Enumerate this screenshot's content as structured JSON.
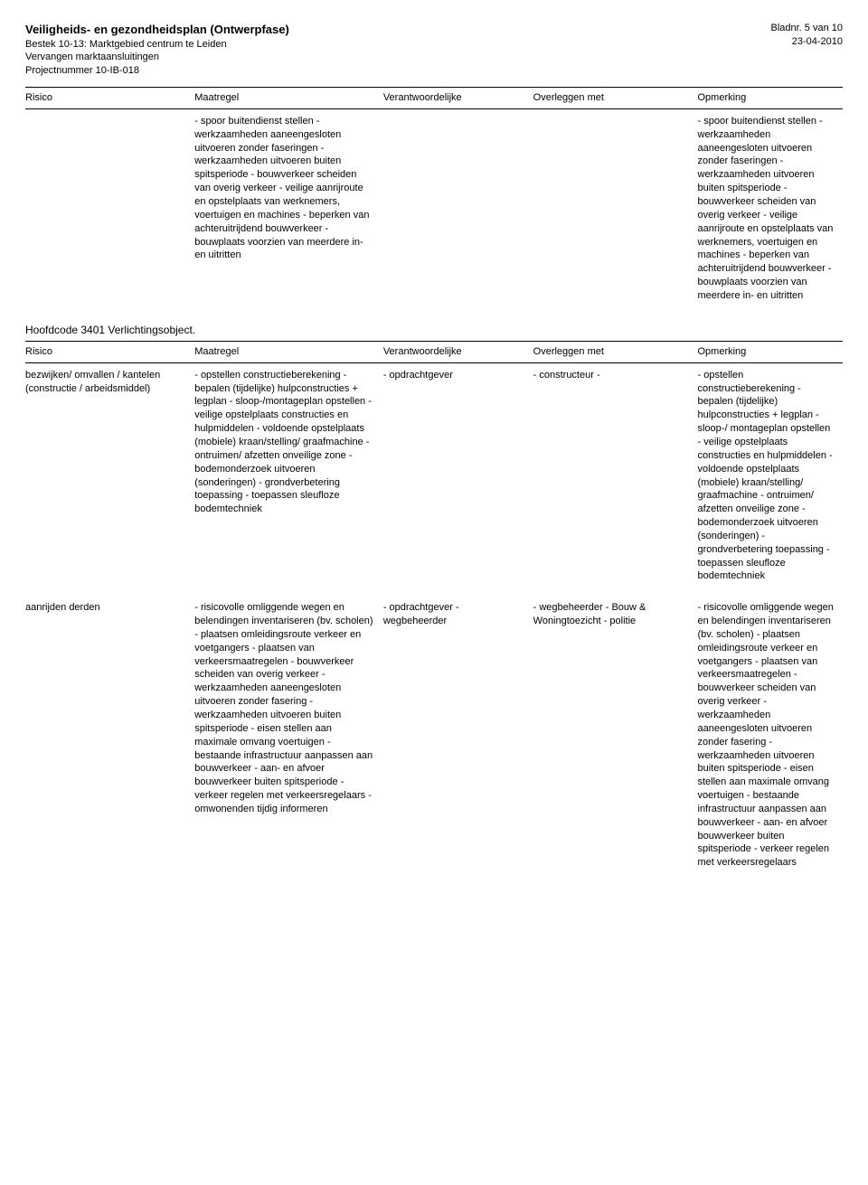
{
  "header": {
    "title": "Veiligheids- en gezondheidsplan (Ontwerpfase)",
    "line2": "Bestek 10-13: Marktgebied centrum te Leiden",
    "line3": "Vervangen marktaansluitingen",
    "line4": "Projectnummer 10-IB-018",
    "page": "Bladnr. 5 van 10",
    "date": "23-04-2010"
  },
  "columns": {
    "c1": "Risico",
    "c2": "Maatregel",
    "c3": "Verantwoordelijke",
    "c4": "Overleggen met",
    "c5": "Opmerking"
  },
  "section2_title": "Hoofdcode 3401 Verlichtingsobject.",
  "row1": {
    "c1": "",
    "c2": "- spoor buitendienst stellen\n- werkzaamheden aaneengesloten uitvoeren zonder faseringen\n- werkzaamheden uitvoeren buiten spitsperiode\n- bouwverkeer scheiden van overig verkeer\n- veilige aanrijroute en opstelplaats van werknemers, voertuigen en machines\n- beperken van achteruitrijdend bouwverkeer\n- bouwplaats voorzien van meerdere in- en uitritten",
    "c3": "",
    "c4": "",
    "c5": "- spoor buitendienst stellen\n- werkzaamheden aaneengesloten uitvoeren zonder faseringen\n- werkzaamheden uitvoeren buiten spitsperiode\n- bouwverkeer scheiden van overig verkeer\n- veilige aanrijroute en opstelplaats van werknemers, voertuigen en machines\n- beperken van achteruitrijdend bouwverkeer\n- bouwplaats voorzien van meerdere in- en uitritten"
  },
  "row2": {
    "c1": "bezwijken/ omvallen / kantelen (constructie / arbeidsmiddel)",
    "c2": "- opstellen constructieberekening\n- bepalen (tijdelijke) hulpconstructies + legplan\n- sloop-/montageplan opstellen\n- veilige opstelplaats constructies en hulpmiddelen\n- voldoende opstelplaats (mobiele) kraan/stelling/ graafmachine\n- ontruimen/ afzetten onveilige zone\n- bodemonderzoek uitvoeren (sonderingen)\n- grondverbetering toepassing\n- toepassen sleufloze bodemtechniek",
    "c3": "- opdrachtgever",
    "c4": "- constructeur\n-",
    "c5": "- opstellen constructieberekening\n- bepalen (tijdelijke) hulpconstructies + legplan\n- sloop-/ montageplan opstellen\n- veilige opstelplaats constructies en hulpmiddelen\n- voldoende opstelplaats (mobiele) kraan/stelling/ graafmachine\n- ontruimen/ afzetten onveilige zone\n- bodemonderzoek uitvoeren (sonderingen)\n- grondverbetering toepassing\n- toepassen sleufloze bodemtechniek"
  },
  "row3": {
    "c1": "aanrijden derden",
    "c2": "- risicovolle omliggende wegen en belendingen inventariseren (bv. scholen)\n- plaatsen omleidingsroute verkeer en voetgangers\n- plaatsen van verkeersmaatregelen\n- bouwverkeer scheiden van overig verkeer\n- werkzaamheden aaneengesloten uitvoeren zonder fasering\n- werkzaamheden uitvoeren buiten spitsperiode\n- eisen stellen aan maximale omvang voertuigen\n- bestaande infrastructuur aanpassen aan bouwverkeer\n- aan- en afvoer bouwverkeer buiten spitsperiode\n- verkeer regelen met verkeersregelaars\n- omwonenden tijdig informeren",
    "c3": "- opdrachtgever\n- wegbeheerder",
    "c4": "- wegbeheerder\n- Bouw & Woningtoezicht\n-  politie",
    "c5": "- risicovolle omliggende wegen en belendingen inventariseren (bv. scholen)\n- plaatsen omleidingsroute verkeer en voetgangers\n- plaatsen van verkeersmaatregelen\n- bouwverkeer scheiden van overig verkeer\n- werkzaamheden aaneengesloten uitvoeren zonder fasering\n- werkzaamheden uitvoeren buiten spitsperiode\n- eisen stellen aan maximale omvang voertuigen\n- bestaande infrastructuur aanpassen aan bouwverkeer\n- aan- en afvoer bouwverkeer buiten spitsperiode\n- verkeer regelen met verkeersregelaars"
  }
}
